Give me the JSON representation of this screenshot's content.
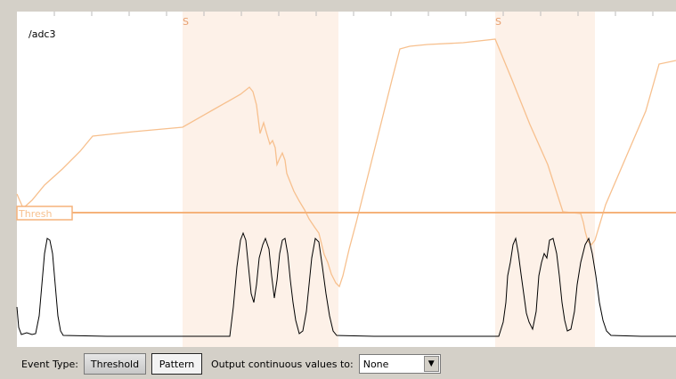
{
  "plot": {
    "channel": "/adc3",
    "event_markers": [
      "S",
      "S"
    ],
    "threshold_label": "Thresh",
    "colors": {
      "background": "#ffffff",
      "frame": "#d4d0c8",
      "event_band": "#fdf1e8",
      "pattern_trace": "#f7c08e",
      "threshold_line": "#f5b27a",
      "signal_trace": "#000000"
    }
  },
  "toolbar": {
    "event_type_label": "Event Type:",
    "threshold_button": "Threshold",
    "pattern_button": "Pattern",
    "output_label": "Output continuous values to:",
    "output_value": "None"
  }
}
